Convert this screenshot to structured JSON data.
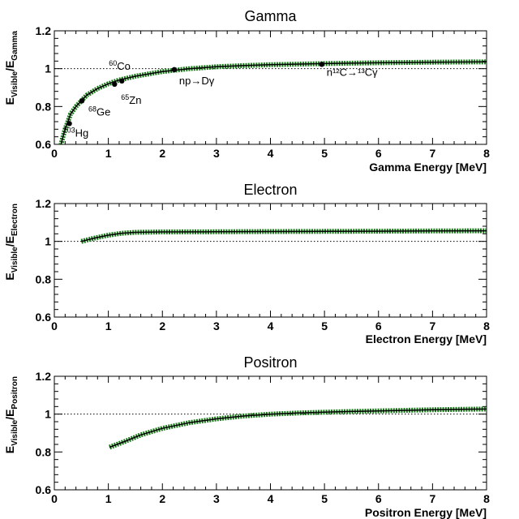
{
  "chart_data": [
    {
      "type": "line",
      "title": "Gamma",
      "xlabel": "Gamma Energy [MeV]",
      "ylabel_main": "E",
      "ylabel_sub1": "Visible",
      "ylabel_sep": "/E",
      "ylabel_sub2": "Gamma",
      "xlim": [
        0,
        8
      ],
      "ylim": [
        0.6,
        1.2
      ],
      "xticks": [
        "0",
        "1",
        "2",
        "3",
        "4",
        "5",
        "6",
        "7",
        "8"
      ],
      "yticks": [
        "0.6",
        "0.8",
        "1",
        "1.2"
      ],
      "reference_line": 1.0,
      "curve": {
        "x": [
          0.1,
          0.15,
          0.2,
          0.25,
          0.3,
          0.4,
          0.5,
          0.6,
          0.8,
          1.0,
          1.2,
          1.5,
          2.0,
          2.5,
          3.0,
          3.5,
          4.0,
          5.0,
          6.0,
          7.0,
          8.0
        ],
        "y": [
          0.57,
          0.63,
          0.68,
          0.72,
          0.76,
          0.8,
          0.83,
          0.86,
          0.895,
          0.92,
          0.94,
          0.96,
          0.985,
          1.0,
          1.01,
          1.016,
          1.021,
          1.027,
          1.031,
          1.034,
          1.036
        ]
      },
      "points": [
        {
          "label_num": "203",
          "label_elem": "Hg",
          "x": 0.279,
          "y": 0.71
        },
        {
          "label_num": "68",
          "label_elem": "Ge",
          "x": 0.511,
          "y": 0.83
        },
        {
          "label_num": "65",
          "label_elem": "Zn",
          "x": 1.115,
          "y": 0.918
        },
        {
          "label_num": "60",
          "label_elem": "Co",
          "x": 1.25,
          "y": 0.935
        },
        {
          "label_text": "np→Dγ",
          "x": 2.22,
          "y": 0.995
        },
        {
          "label_text": "n¹²C→¹³Cγ",
          "x": 4.95,
          "y": 1.023
        }
      ]
    },
    {
      "type": "line",
      "title": "Electron",
      "xlabel": "Electron Energy [MeV]",
      "ylabel_main": "E",
      "ylabel_sub1": "Visible",
      "ylabel_sep": "/E",
      "ylabel_sub2": "Electron",
      "xlim": [
        0,
        8
      ],
      "ylim": [
        0.6,
        1.2
      ],
      "xticks": [
        "0",
        "1",
        "2",
        "3",
        "4",
        "5",
        "6",
        "7",
        "8"
      ],
      "yticks": [
        "0.6",
        "0.8",
        "1",
        "1.2"
      ],
      "reference_line": 1.0,
      "curve": {
        "x": [
          0.5,
          0.75,
          1.0,
          1.25,
          1.5,
          2.0,
          3.0,
          4.0,
          5.0,
          6.0,
          7.0,
          8.0
        ],
        "y": [
          1.0,
          1.018,
          1.033,
          1.043,
          1.048,
          1.05,
          1.051,
          1.052,
          1.053,
          1.054,
          1.055,
          1.056
        ]
      }
    },
    {
      "type": "line",
      "title": "Positron",
      "xlabel": "Positron Energy [MeV]",
      "ylabel_main": "E",
      "ylabel_sub1": "Visible",
      "ylabel_sep": "/E",
      "ylabel_sub2": "Positron",
      "xlim": [
        0,
        8
      ],
      "ylim": [
        0.6,
        1.2
      ],
      "xticks": [
        "0",
        "1",
        "2",
        "3",
        "4",
        "5",
        "6",
        "7",
        "8"
      ],
      "yticks": [
        "0.6",
        "0.8",
        "1",
        "1.2"
      ],
      "reference_line": 1.0,
      "curve": {
        "x": [
          1.022,
          1.3,
          1.6,
          2.0,
          2.5,
          3.0,
          3.5,
          4.0,
          4.5,
          5.0,
          5.5,
          6.0,
          6.5,
          7.0,
          7.5,
          8.0
        ],
        "y": [
          0.825,
          0.855,
          0.89,
          0.925,
          0.955,
          0.975,
          0.99,
          1.0,
          1.006,
          1.01,
          1.014,
          1.017,
          1.02,
          1.023,
          1.025,
          1.027
        ]
      }
    }
  ],
  "colors": {
    "curve": "#000000",
    "band": "#1a7a1a",
    "reference": "#000000"
  }
}
